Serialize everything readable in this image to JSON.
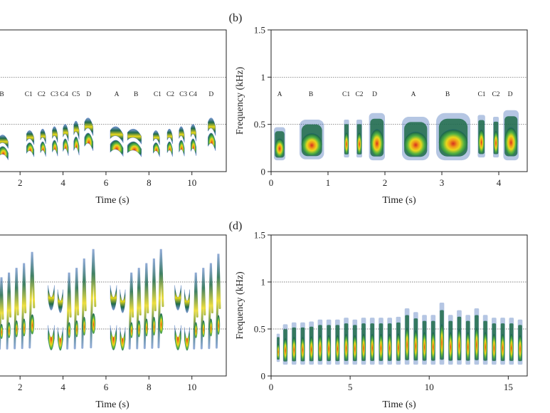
{
  "chart_data": [
    {
      "panel_label": "",
      "type": "spectrogram",
      "xlabel": "Time (s)",
      "ylabel": "",
      "xlim": [
        1.0,
        11.6
      ],
      "ylim": [
        0,
        1.5
      ],
      "xticks": [
        2,
        4,
        6,
        8,
        10
      ],
      "xtick_labels": [
        "2",
        "4",
        "6",
        "8",
        "10"
      ],
      "yticks": [],
      "ytick_labels": [],
      "dashed_lines_y": [
        0.5,
        1.0
      ],
      "syllable_labels": [
        {
          "t": 1.15,
          "label": "B"
        },
        {
          "t": 2.4,
          "label": "C1"
        },
        {
          "t": 3.0,
          "label": "C2"
        },
        {
          "t": 3.6,
          "label": "C3"
        },
        {
          "t": 4.05,
          "label": "C4"
        },
        {
          "t": 4.6,
          "label": "C5"
        },
        {
          "t": 5.2,
          "label": "D"
        },
        {
          "t": 6.5,
          "label": "A"
        },
        {
          "t": 7.4,
          "label": "B"
        },
        {
          "t": 8.4,
          "label": "C1"
        },
        {
          "t": 9.0,
          "label": "C2"
        },
        {
          "t": 9.6,
          "label": "C3"
        },
        {
          "t": 10.05,
          "label": "C4"
        },
        {
          "t": 10.9,
          "label": "D"
        }
      ],
      "syllables": [
        {
          "t0": 1.0,
          "t1": 1.45,
          "f0": 0.07,
          "f1": 0.45,
          "style": "harmonic"
        },
        {
          "t0": 2.3,
          "t1": 2.65,
          "f0": 0.1,
          "f1": 0.5,
          "style": "harmonic"
        },
        {
          "t0": 2.95,
          "t1": 3.2,
          "f0": 0.1,
          "f1": 0.52,
          "style": "harmonic"
        },
        {
          "t0": 3.5,
          "t1": 3.75,
          "f0": 0.1,
          "f1": 0.55,
          "style": "harmonic"
        },
        {
          "t0": 4.0,
          "t1": 4.25,
          "f0": 0.1,
          "f1": 0.58,
          "style": "harmonic"
        },
        {
          "t0": 4.5,
          "t1": 4.75,
          "f0": 0.1,
          "f1": 0.62,
          "style": "harmonic"
        },
        {
          "t0": 5.0,
          "t1": 5.4,
          "f0": 0.15,
          "f1": 0.65,
          "style": "harmonic"
        },
        {
          "t0": 6.2,
          "t1": 6.8,
          "f0": 0.1,
          "f1": 0.55,
          "style": "harmonic"
        },
        {
          "t0": 7.0,
          "t1": 7.65,
          "f0": 0.1,
          "f1": 0.52,
          "style": "harmonic"
        },
        {
          "t0": 8.2,
          "t1": 8.5,
          "f0": 0.1,
          "f1": 0.5,
          "style": "harmonic"
        },
        {
          "t0": 8.85,
          "t1": 9.1,
          "f0": 0.1,
          "f1": 0.52,
          "style": "harmonic"
        },
        {
          "t0": 9.4,
          "t1": 9.65,
          "f0": 0.1,
          "f1": 0.55,
          "style": "harmonic"
        },
        {
          "t0": 9.95,
          "t1": 10.2,
          "f0": 0.1,
          "f1": 0.58,
          "style": "harmonic"
        },
        {
          "t0": 10.75,
          "t1": 11.1,
          "f0": 0.15,
          "f1": 0.65,
          "style": "harmonic"
        }
      ]
    },
    {
      "panel_label": "(b)",
      "type": "spectrogram",
      "xlabel": "Time (s)",
      "ylabel": "Frequency (kHz)",
      "xlim": [
        0,
        4.5
      ],
      "ylim": [
        0,
        1.5
      ],
      "xticks": [
        0,
        1,
        2,
        3,
        4
      ],
      "xtick_labels": [
        "0",
        "1",
        "2",
        "3",
        "4"
      ],
      "yticks": [
        0,
        0.5,
        1,
        1.5
      ],
      "ytick_labels": [
        "0",
        "0.5",
        "1",
        "1.5"
      ],
      "dashed_lines_y": [
        0.5,
        1.0
      ],
      "syllable_labels": [
        {
          "t": 0.15,
          "label": "A"
        },
        {
          "t": 0.7,
          "label": "B"
        },
        {
          "t": 1.32,
          "label": "C1"
        },
        {
          "t": 1.55,
          "label": "C2"
        },
        {
          "t": 1.82,
          "label": "D"
        },
        {
          "t": 2.5,
          "label": "A"
        },
        {
          "t": 3.1,
          "label": "B"
        },
        {
          "t": 3.7,
          "label": "C1"
        },
        {
          "t": 3.95,
          "label": "C2"
        },
        {
          "t": 4.2,
          "label": "D"
        }
      ],
      "syllables": [
        {
          "t0": 0.05,
          "t1": 0.25,
          "f0": 0.12,
          "f1": 0.47,
          "style": "blob"
        },
        {
          "t0": 0.5,
          "t1": 0.93,
          "f0": 0.13,
          "f1": 0.55,
          "style": "blob"
        },
        {
          "t0": 1.28,
          "t1": 1.37,
          "f0": 0.15,
          "f1": 0.55,
          "style": "blob"
        },
        {
          "t0": 1.5,
          "t1": 1.6,
          "f0": 0.15,
          "f1": 0.55,
          "style": "blob"
        },
        {
          "t0": 1.72,
          "t1": 2.0,
          "f0": 0.12,
          "f1": 0.62,
          "style": "blob"
        },
        {
          "t0": 2.3,
          "t1": 2.78,
          "f0": 0.12,
          "f1": 0.58,
          "style": "blob"
        },
        {
          "t0": 2.9,
          "t1": 3.5,
          "f0": 0.12,
          "f1": 0.62,
          "style": "blob"
        },
        {
          "t0": 3.63,
          "t1": 3.76,
          "f0": 0.15,
          "f1": 0.6,
          "style": "blob"
        },
        {
          "t0": 3.9,
          "t1": 4.0,
          "f0": 0.15,
          "f1": 0.58,
          "style": "blob"
        },
        {
          "t0": 4.08,
          "t1": 4.35,
          "f0": 0.12,
          "f1": 0.65,
          "style": "blob"
        }
      ]
    },
    {
      "panel_label": "",
      "type": "spectrogram",
      "xlabel": "Time (s)",
      "ylabel": "",
      "xlim": [
        1.0,
        11.6
      ],
      "ylim": [
        0,
        1.5
      ],
      "xticks": [
        2,
        4,
        6,
        8,
        10
      ],
      "xtick_labels": [
        "2",
        "4",
        "6",
        "8",
        "10"
      ],
      "yticks": [],
      "ytick_labels": [],
      "dashed_lines_y": [
        0.5,
        1.0
      ],
      "syllable_labels": [],
      "syllables": [
        {
          "t0": 1.05,
          "t1": 1.2,
          "f0": 0.25,
          "f1": 1.05,
          "style": "sweep"
        },
        {
          "t0": 1.4,
          "t1": 1.55,
          "f0": 0.25,
          "f1": 1.1,
          "style": "sweep"
        },
        {
          "t0": 1.75,
          "t1": 1.9,
          "f0": 0.25,
          "f1": 1.15,
          "style": "sweep"
        },
        {
          "t0": 2.1,
          "t1": 2.25,
          "f0": 0.25,
          "f1": 1.2,
          "style": "sweep"
        },
        {
          "t0": 2.45,
          "t1": 2.65,
          "f0": 0.25,
          "f1": 1.32,
          "style": "sweep"
        },
        {
          "t0": 3.3,
          "t1": 3.6,
          "f0": 0.2,
          "f1": 1.05,
          "style": "dip"
        },
        {
          "t0": 3.75,
          "t1": 4.0,
          "f0": 0.2,
          "f1": 1.0,
          "style": "dip"
        },
        {
          "t0": 4.2,
          "t1": 4.35,
          "f0": 0.25,
          "f1": 1.1,
          "style": "sweep"
        },
        {
          "t0": 4.55,
          "t1": 4.7,
          "f0": 0.25,
          "f1": 1.15,
          "style": "sweep"
        },
        {
          "t0": 4.9,
          "t1": 5.05,
          "f0": 0.25,
          "f1": 1.25,
          "style": "sweep"
        },
        {
          "t0": 5.3,
          "t1": 5.5,
          "f0": 0.25,
          "f1": 1.35,
          "style": "sweep"
        },
        {
          "t0": 6.2,
          "t1": 6.5,
          "f0": 0.2,
          "f1": 1.05,
          "style": "dip"
        },
        {
          "t0": 6.65,
          "t1": 6.9,
          "f0": 0.2,
          "f1": 1.0,
          "style": "dip"
        },
        {
          "t0": 7.1,
          "t1": 7.25,
          "f0": 0.25,
          "f1": 1.1,
          "style": "sweep"
        },
        {
          "t0": 7.45,
          "t1": 7.6,
          "f0": 0.25,
          "f1": 1.15,
          "style": "sweep"
        },
        {
          "t0": 7.8,
          "t1": 7.95,
          "f0": 0.25,
          "f1": 1.2,
          "style": "sweep"
        },
        {
          "t0": 8.15,
          "t1": 8.3,
          "f0": 0.25,
          "f1": 1.25,
          "style": "sweep"
        },
        {
          "t0": 8.45,
          "t1": 8.65,
          "f0": 0.25,
          "f1": 1.35,
          "style": "sweep"
        },
        {
          "t0": 9.2,
          "t1": 9.5,
          "f0": 0.2,
          "f1": 1.05,
          "style": "dip"
        },
        {
          "t0": 9.65,
          "t1": 9.9,
          "f0": 0.2,
          "f1": 1.0,
          "style": "dip"
        },
        {
          "t0": 10.1,
          "t1": 10.25,
          "f0": 0.25,
          "f1": 1.1,
          "style": "sweep"
        },
        {
          "t0": 10.45,
          "t1": 10.6,
          "f0": 0.25,
          "f1": 1.15,
          "style": "sweep"
        },
        {
          "t0": 10.8,
          "t1": 10.95,
          "f0": 0.25,
          "f1": 1.2,
          "style": "sweep"
        },
        {
          "t0": 11.15,
          "t1": 11.3,
          "f0": 0.25,
          "f1": 1.3,
          "style": "sweep"
        }
      ]
    },
    {
      "panel_label": "(d)",
      "type": "spectrogram",
      "xlabel": "Time (s)",
      "ylabel": "Frequency (kHz)",
      "xlim": [
        0,
        16.2
      ],
      "ylim": [
        0,
        1.5
      ],
      "xticks": [
        0,
        5,
        10,
        15
      ],
      "xtick_labels": [
        "0",
        "5",
        "10",
        "15"
      ],
      "yticks": [
        0,
        0.5,
        1,
        1.5
      ],
      "ytick_labels": [
        "0",
        "0.5",
        "1",
        "1.5"
      ],
      "dashed_lines_y": [
        0.5,
        1.0
      ],
      "syllable_labels": [],
      "syllables": [
        {
          "t0": 0.35,
          "t1": 0.55,
          "f0": 0.15,
          "f1": 0.45,
          "style": "blob"
        },
        {
          "t0": 0.75,
          "t1": 1.05,
          "f0": 0.12,
          "f1": 0.55,
          "style": "blob"
        },
        {
          "t0": 1.3,
          "t1": 1.6,
          "f0": 0.12,
          "f1": 0.57,
          "style": "blob"
        },
        {
          "t0": 1.85,
          "t1": 2.15,
          "f0": 0.12,
          "f1": 0.57,
          "style": "blob"
        },
        {
          "t0": 2.4,
          "t1": 2.7,
          "f0": 0.12,
          "f1": 0.58,
          "style": "blob"
        },
        {
          "t0": 2.95,
          "t1": 3.25,
          "f0": 0.12,
          "f1": 0.6,
          "style": "blob"
        },
        {
          "t0": 3.5,
          "t1": 3.8,
          "f0": 0.12,
          "f1": 0.6,
          "style": "blob"
        },
        {
          "t0": 4.05,
          "t1": 4.35,
          "f0": 0.12,
          "f1": 0.6,
          "style": "blob"
        },
        {
          "t0": 4.6,
          "t1": 4.9,
          "f0": 0.12,
          "f1": 0.62,
          "style": "blob"
        },
        {
          "t0": 5.15,
          "t1": 5.45,
          "f0": 0.12,
          "f1": 0.6,
          "style": "blob"
        },
        {
          "t0": 5.7,
          "t1": 6.0,
          "f0": 0.12,
          "f1": 0.62,
          "style": "blob"
        },
        {
          "t0": 6.25,
          "t1": 6.55,
          "f0": 0.12,
          "f1": 0.62,
          "style": "blob"
        },
        {
          "t0": 6.8,
          "t1": 7.1,
          "f0": 0.12,
          "f1": 0.62,
          "style": "blob"
        },
        {
          "t0": 7.35,
          "t1": 7.65,
          "f0": 0.12,
          "f1": 0.62,
          "style": "blob"
        },
        {
          "t0": 7.9,
          "t1": 8.2,
          "f0": 0.12,
          "f1": 0.63,
          "style": "blob"
        },
        {
          "t0": 8.45,
          "t1": 8.75,
          "f0": 0.12,
          "f1": 0.72,
          "style": "blob"
        },
        {
          "t0": 9.0,
          "t1": 9.3,
          "f0": 0.12,
          "f1": 0.68,
          "style": "blob"
        },
        {
          "t0": 9.55,
          "t1": 9.85,
          "f0": 0.12,
          "f1": 0.65,
          "style": "blob"
        },
        {
          "t0": 10.1,
          "t1": 10.4,
          "f0": 0.12,
          "f1": 0.65,
          "style": "blob"
        },
        {
          "t0": 10.65,
          "t1": 10.95,
          "f0": 0.12,
          "f1": 0.78,
          "style": "blob"
        },
        {
          "t0": 11.2,
          "t1": 11.5,
          "f0": 0.12,
          "f1": 0.65,
          "style": "blob"
        },
        {
          "t0": 11.75,
          "t1": 12.05,
          "f0": 0.12,
          "f1": 0.7,
          "style": "blob"
        },
        {
          "t0": 12.3,
          "t1": 12.6,
          "f0": 0.12,
          "f1": 0.65,
          "style": "blob"
        },
        {
          "t0": 12.85,
          "t1": 13.15,
          "f0": 0.12,
          "f1": 0.72,
          "style": "blob"
        },
        {
          "t0": 13.4,
          "t1": 13.7,
          "f0": 0.12,
          "f1": 0.65,
          "style": "blob"
        },
        {
          "t0": 13.95,
          "t1": 14.25,
          "f0": 0.12,
          "f1": 0.62,
          "style": "blob"
        },
        {
          "t0": 14.5,
          "t1": 14.8,
          "f0": 0.12,
          "f1": 0.62,
          "style": "blob"
        },
        {
          "t0": 15.05,
          "t1": 15.35,
          "f0": 0.12,
          "f1": 0.62,
          "style": "blob"
        },
        {
          "t0": 15.6,
          "t1": 15.9,
          "f0": 0.12,
          "f1": 0.6,
          "style": "blob"
        }
      ]
    }
  ]
}
